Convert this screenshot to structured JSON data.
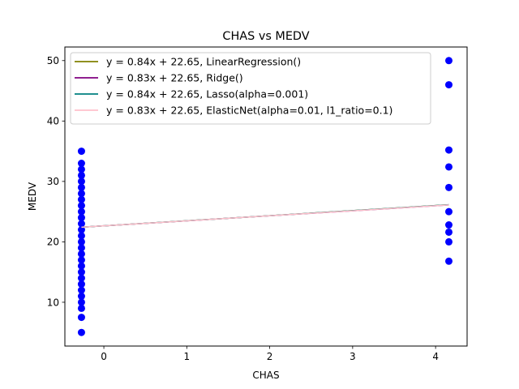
{
  "chart_data": {
    "type": "scatter",
    "title": "CHAS vs MEDV",
    "xlabel": "CHAS",
    "ylabel": "MEDV",
    "xlim": [
      -0.47,
      4.38
    ],
    "ylim": [
      2.75,
      52.25
    ],
    "xticks": [
      0,
      1,
      2,
      3,
      4
    ],
    "yticks": [
      10,
      20,
      30,
      40,
      50
    ],
    "grid": false,
    "legend_position": "top-left",
    "scatter": {
      "color": "#0000ff",
      "points": [
        {
          "x": -0.27,
          "y": 35.0
        },
        {
          "x": -0.27,
          "y": 33.0
        },
        {
          "x": -0.27,
          "y": 32.0
        },
        {
          "x": -0.27,
          "y": 31.0
        },
        {
          "x": -0.27,
          "y": 30.0
        },
        {
          "x": -0.27,
          "y": 29.0
        },
        {
          "x": -0.27,
          "y": 28.0
        },
        {
          "x": -0.27,
          "y": 27.0
        },
        {
          "x": -0.27,
          "y": 26.0
        },
        {
          "x": -0.27,
          "y": 25.0
        },
        {
          "x": -0.27,
          "y": 24.0
        },
        {
          "x": -0.27,
          "y": 23.0
        },
        {
          "x": -0.27,
          "y": 22.0
        },
        {
          "x": -0.27,
          "y": 21.0
        },
        {
          "x": -0.27,
          "y": 20.0
        },
        {
          "x": -0.27,
          "y": 19.0
        },
        {
          "x": -0.27,
          "y": 18.0
        },
        {
          "x": -0.27,
          "y": 17.0
        },
        {
          "x": -0.27,
          "y": 16.0
        },
        {
          "x": -0.27,
          "y": 15.0
        },
        {
          "x": -0.27,
          "y": 14.0
        },
        {
          "x": -0.27,
          "y": 13.0
        },
        {
          "x": -0.27,
          "y": 12.0
        },
        {
          "x": -0.27,
          "y": 11.0
        },
        {
          "x": -0.27,
          "y": 10.0
        },
        {
          "x": -0.27,
          "y": 9.0
        },
        {
          "x": -0.27,
          "y": 7.5
        },
        {
          "x": -0.27,
          "y": 5.0
        },
        {
          "x": 4.16,
          "y": 50.0
        },
        {
          "x": 4.16,
          "y": 46.0
        },
        {
          "x": 4.16,
          "y": 35.2
        },
        {
          "x": 4.16,
          "y": 32.4
        },
        {
          "x": 4.16,
          "y": 29.0
        },
        {
          "x": 4.16,
          "y": 25.0
        },
        {
          "x": 4.16,
          "y": 22.8
        },
        {
          "x": 4.16,
          "y": 21.6
        },
        {
          "x": 4.16,
          "y": 20.0
        },
        {
          "x": 4.16,
          "y": 16.8
        }
      ]
    },
    "series": [
      {
        "name": "y = 0.84x + 22.65, LinearRegression()",
        "slope": 0.84,
        "intercept": 22.65,
        "color": "#808000"
      },
      {
        "name": "y = 0.83x + 22.65, Ridge()",
        "slope": 0.83,
        "intercept": 22.65,
        "color": "#800080"
      },
      {
        "name": "y = 0.84x + 22.65, Lasso(alpha=0.001)",
        "slope": 0.84,
        "intercept": 22.65,
        "color": "#008080"
      },
      {
        "name": "y = 0.83x + 22.65, ElasticNet(alpha=0.01, l1_ratio=0.1)",
        "slope": 0.83,
        "intercept": 22.65,
        "color": "#ffc0cb"
      }
    ],
    "line_x_range": [
      -0.27,
      4.16
    ]
  }
}
